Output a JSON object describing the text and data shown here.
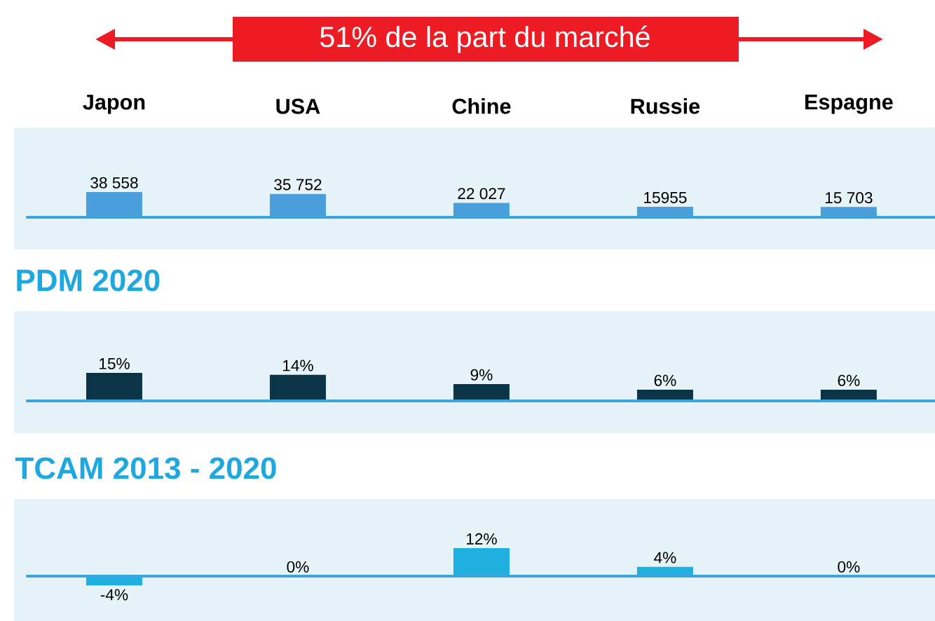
{
  "chart_data": [
    {
      "type": "bar",
      "title": "51% de la part du marché",
      "categories": [
        "Japon",
        "USA",
        "Chine",
        "Russie",
        "Espagne"
      ],
      "values": [
        38558,
        35752,
        22027,
        15955,
        15703
      ],
      "value_labels": [
        "38 558",
        "35 752",
        "22 027",
        "15955",
        "15 703"
      ],
      "color": "#4a9fdc",
      "tick_labels": "x",
      "ref_lines": [
        {
          "axis": "y",
          "value": 0,
          "color": "#3aa6dc"
        }
      ]
    },
    {
      "type": "bar",
      "title": "PDM 2020",
      "categories": [
        null,
        null,
        null,
        null,
        null
      ],
      "values": [
        15,
        14,
        9,
        6,
        6
      ],
      "value_labels": [
        "15%",
        "14%",
        "9%",
        "6%",
        "6%"
      ],
      "color": "#0b3546",
      "tick_labels": false,
      "ref_lines": [
        {
          "axis": "y",
          "value": 0,
          "color": "#3aa6dc"
        }
      ]
    },
    {
      "type": "bar",
      "title": "TCAM 2013 - 2020",
      "categories": [
        null,
        null,
        null,
        null,
        null
      ],
      "values": [
        -4,
        0,
        12,
        4,
        0
      ],
      "value_labels": [
        "-4%",
        "0%",
        "12%",
        "4%",
        "0%"
      ],
      "color": "#1fb0e0",
      "tick_labels": false,
      "ref_lines": [
        {
          "axis": "y",
          "value": 0,
          "color": "#3aa6dc"
        }
      ]
    }
  ]
}
